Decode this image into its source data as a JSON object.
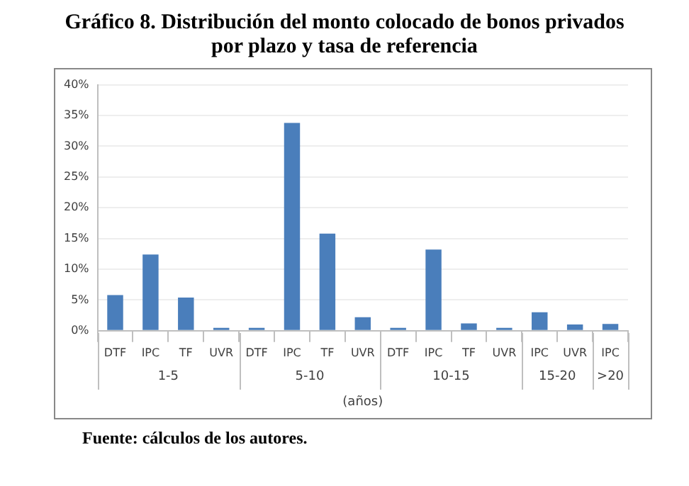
{
  "chart_data": {
    "type": "bar",
    "title": "Gráfico 8. Distribución del monto colocado de bonos privados por plazo y tasa de referencia",
    "xlabel": "(años)",
    "categories": [
      "DTF",
      "IPC",
      "TF",
      "UVR",
      "DTF",
      "IPC",
      "TF",
      "UVR",
      "DTF",
      "IPC",
      "TF",
      "UVR",
      "IPC",
      "UVR",
      "IPC"
    ],
    "values": [
      5.8,
      12.4,
      5.4,
      0.2,
      0.3,
      33.8,
      15.8,
      2.2,
      0.1,
      13.2,
      1.2,
      0.2,
      3.0,
      1.0,
      1.1
    ],
    "color": "#4a7ebb",
    "ylim": [
      0,
      40
    ],
    "yticks": [
      {
        "value": 0,
        "label": "0%"
      },
      {
        "value": 5,
        "label": "5%"
      },
      {
        "value": 10,
        "label": "10%"
      },
      {
        "value": 15,
        "label": "15%"
      },
      {
        "value": 20,
        "label": "20%"
      },
      {
        "value": 25,
        "label": "25%"
      },
      {
        "value": 30,
        "label": "30%"
      },
      {
        "value": 35,
        "label": "35%"
      },
      {
        "value": 40,
        "label": "40%"
      }
    ],
    "grid": "y",
    "annotations": [
      "1-5",
      "5-10",
      "10-15",
      "15-20",
      ">20",
      "Fuente: cálculos de los autores."
    ]
  }
}
